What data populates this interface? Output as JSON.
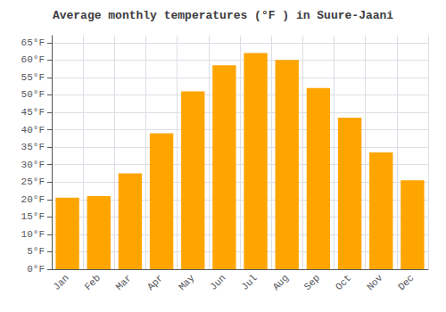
{
  "chart_data": {
    "type": "bar",
    "title": "Average monthly temperatures (°F ) in Suure-Jaani",
    "categories": [
      "Jan",
      "Feb",
      "Mar",
      "Apr",
      "May",
      "Jun",
      "Jul",
      "Aug",
      "Sep",
      "Oct",
      "Nov",
      "Dec"
    ],
    "values": [
      20.5,
      21.0,
      27.5,
      39.0,
      51.0,
      58.5,
      62.0,
      60.0,
      52.0,
      43.5,
      33.5,
      25.5
    ],
    "color": "#FFA500",
    "ylim": [
      0,
      67
    ],
    "yticks": [
      {
        "value": 0,
        "label": "0°F"
      },
      {
        "value": 5,
        "label": "5°F"
      },
      {
        "value": 10,
        "label": "10°F"
      },
      {
        "value": 15,
        "label": "15°F"
      },
      {
        "value": 20,
        "label": "20°F"
      },
      {
        "value": 25,
        "label": "25°F"
      },
      {
        "value": 30,
        "label": "30°F"
      },
      {
        "value": 35,
        "label": "35°F"
      },
      {
        "value": 40,
        "label": "40°F"
      },
      {
        "value": 45,
        "label": "45°F"
      },
      {
        "value": 50,
        "label": "50°F"
      },
      {
        "value": 55,
        "label": "55°F"
      },
      {
        "value": 60,
        "label": "60°F"
      },
      {
        "value": 65,
        "label": "65°F"
      }
    ],
    "grid": true
  }
}
